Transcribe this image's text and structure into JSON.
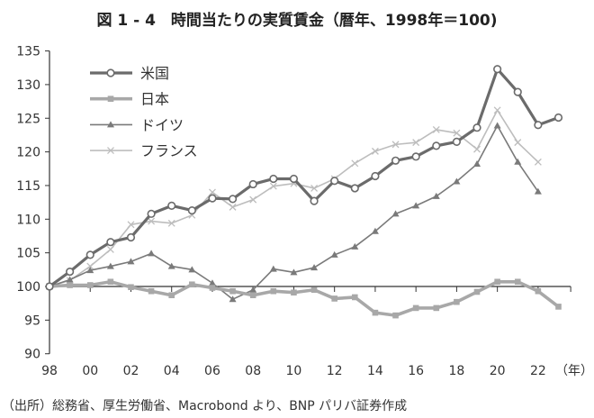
{
  "chart_data": {
    "type": "line",
    "title": "図 1 - 4　時間当たりの実質賃金（暦年、1998年＝100)",
    "source": "（出所）総務省、厚生労働省、Macrobond より、BNP パリバ証券作成",
    "xlabel": "（年）",
    "ylabel": "",
    "ylim": [
      90,
      135
    ],
    "yticks": [
      90,
      95,
      100,
      105,
      110,
      115,
      120,
      125,
      130,
      135
    ],
    "xlim": [
      1998,
      2024
    ],
    "xticks": [
      1998,
      2000,
      2002,
      2004,
      2006,
      2008,
      2010,
      2012,
      2014,
      2016,
      2018,
      2020,
      2022
    ],
    "xtick_labels": [
      "98",
      "00",
      "02",
      "04",
      "06",
      "08",
      "10",
      "12",
      "14",
      "16",
      "18",
      "20",
      "22"
    ],
    "grid": false,
    "legend_position": "top-left",
    "baseline": 100,
    "series": [
      {
        "name": "米国",
        "color": "#6b6b6b",
        "marker": "open-circle",
        "x": [
          1998,
          1999,
          2000,
          2001,
          2002,
          2003,
          2004,
          2005,
          2006,
          2007,
          2008,
          2009,
          2010,
          2011,
          2012,
          2013,
          2014,
          2015,
          2016,
          2017,
          2018,
          2019,
          2020,
          2021,
          2022,
          2023
        ],
        "values": [
          100,
          102.2,
          104.7,
          106.6,
          107.3,
          110.8,
          112.0,
          111.3,
          113.1,
          113.0,
          115.2,
          116.0,
          116.0,
          112.7,
          115.7,
          114.6,
          116.4,
          118.7,
          119.3,
          120.9,
          121.5,
          123.6,
          132.3,
          128.9,
          124.0,
          125.1
        ]
      },
      {
        "name": "日本",
        "color": "#a8a8a8",
        "marker": "square",
        "x": [
          1998,
          1999,
          2000,
          2001,
          2002,
          2003,
          2004,
          2005,
          2006,
          2007,
          2008,
          2009,
          2010,
          2011,
          2012,
          2013,
          2014,
          2015,
          2016,
          2017,
          2018,
          2019,
          2020,
          2021,
          2022,
          2023
        ],
        "values": [
          100,
          100.2,
          100.2,
          100.7,
          99.9,
          99.3,
          98.7,
          100.3,
          99.8,
          99.3,
          98.7,
          99.3,
          99.1,
          99.5,
          98.2,
          98.4,
          96.1,
          95.7,
          96.8,
          96.8,
          97.7,
          99.2,
          100.7,
          100.7,
          99.3,
          97.0
        ]
      },
      {
        "name": "ドイツ",
        "color": "#7a7a7a",
        "marker": "triangle",
        "x": [
          1998,
          1999,
          2000,
          2001,
          2002,
          2003,
          2004,
          2005,
          2006,
          2007,
          2008,
          2009,
          2010,
          2011,
          2012,
          2013,
          2014,
          2015,
          2016,
          2017,
          2018,
          2019,
          2020,
          2021,
          2022
        ],
        "values": [
          100,
          101.0,
          102.4,
          103.0,
          103.7,
          104.9,
          103.0,
          102.5,
          100.5,
          98.1,
          99.5,
          102.6,
          102.1,
          102.8,
          104.7,
          105.9,
          108.2,
          110.8,
          112.0,
          113.4,
          115.6,
          118.2,
          123.9,
          118.5,
          114.1
        ]
      },
      {
        "name": "フランス",
        "color": "#bdbdbd",
        "marker": "cross",
        "x": [
          1998,
          1999,
          2000,
          2001,
          2002,
          2003,
          2004,
          2005,
          2006,
          2007,
          2008,
          2009,
          2010,
          2011,
          2012,
          2013,
          2014,
          2015,
          2016,
          2017,
          2018,
          2019,
          2020,
          2021,
          2022
        ],
        "values": [
          100,
          100.9,
          103.0,
          105.5,
          109.2,
          109.7,
          109.4,
          110.6,
          114.0,
          111.8,
          112.9,
          114.9,
          115.3,
          114.6,
          116.0,
          118.3,
          120.1,
          121.1,
          121.4,
          123.3,
          122.8,
          120.4,
          126.2,
          121.4,
          118.5
        ]
      }
    ]
  }
}
